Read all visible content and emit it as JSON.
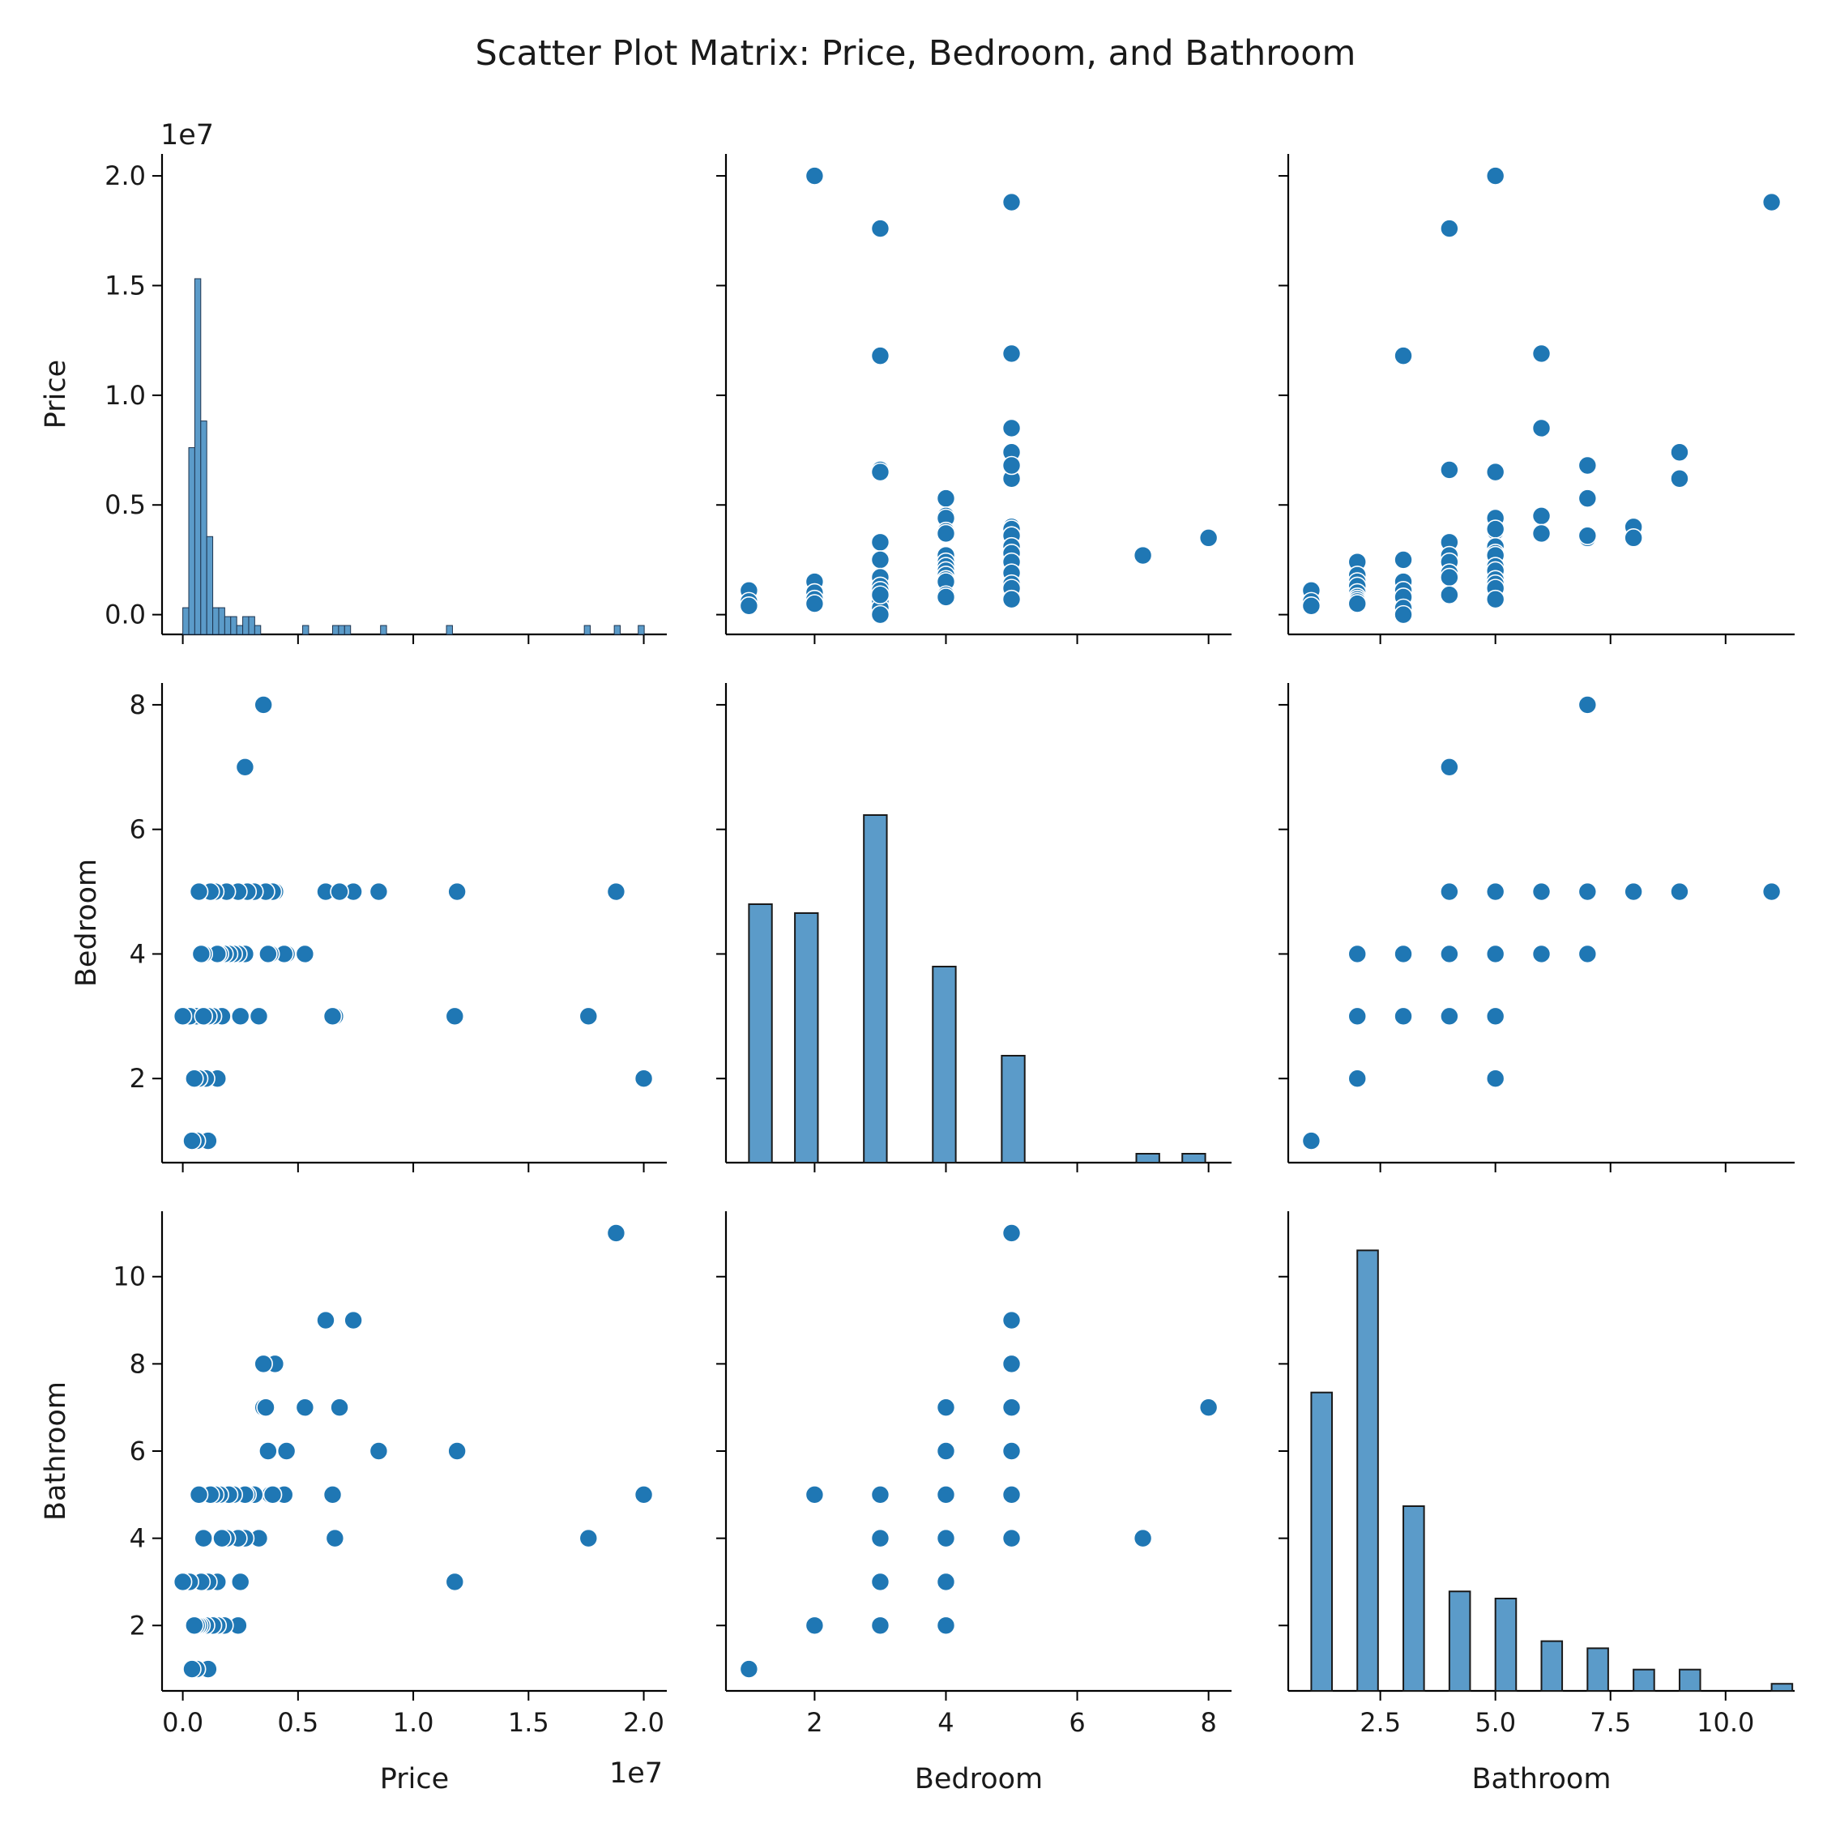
{
  "chart_data": {
    "type": "scatter",
    "title": "Scatter Plot Matrix: Price, Bedroom, and Bathroom",
    "variables": [
      "Price",
      "Bedroom",
      "Bathroom"
    ],
    "offset_label": "1e7",
    "colors": {
      "point": "#1f77b4",
      "bar": "#5b9bc9"
    },
    "ranges": {
      "Price": [
        -900000,
        21000000
      ],
      "Bedroom": [
        0.65,
        8.35
      ],
      "Bathroom": [
        0.5,
        11.5
      ]
    },
    "ticks": {
      "Price": {
        "values": [
          0,
          5000000,
          10000000,
          15000000,
          20000000
        ],
        "labels": [
          "0.0",
          "0.5",
          "1.0",
          "1.5",
          "2.0"
        ]
      },
      "Bedroom": {
        "values": [
          2,
          4,
          6,
          8
        ],
        "labels": [
          "2",
          "4",
          "6",
          "8"
        ]
      },
      "Bathroom": {
        "values": [
          2.5,
          5.0,
          7.5,
          10.0
        ],
        "labels": [
          "2.5",
          "5.0",
          "7.5",
          "10.0"
        ]
      },
      "Bathroom_y": {
        "values": [
          2,
          4,
          6,
          8,
          10
        ],
        "labels": [
          "2",
          "4",
          "6",
          "8",
          "10"
        ]
      }
    },
    "points": [
      [
        20000000,
        2,
        5
      ],
      [
        17600000,
        3,
        4
      ],
      [
        18800000,
        5,
        11
      ],
      [
        11800000,
        3,
        3
      ],
      [
        11900000,
        5,
        6
      ],
      [
        8500000,
        5,
        6
      ],
      [
        7400000,
        5,
        9
      ],
      [
        6200000,
        5,
        9
      ],
      [
        6800000,
        5,
        7
      ],
      [
        6600000,
        3,
        4
      ],
      [
        6500000,
        3,
        5
      ],
      [
        5300000,
        4,
        7
      ],
      [
        4500000,
        4,
        6
      ],
      [
        4400000,
        4,
        5
      ],
      [
        4000000,
        5,
        8
      ],
      [
        3800000,
        4,
        5
      ],
      [
        3900000,
        5,
        5
      ],
      [
        3500000,
        8,
        7
      ],
      [
        3500000,
        5,
        8
      ],
      [
        3700000,
        4,
        6
      ],
      [
        3600000,
        5,
        7
      ],
      [
        3300000,
        3,
        4
      ],
      [
        3100000,
        5,
        5
      ],
      [
        2800000,
        5,
        5
      ],
      [
        2700000,
        7,
        4
      ],
      [
        2700000,
        4,
        5
      ],
      [
        2500000,
        3,
        3
      ],
      [
        2400000,
        5,
        4
      ],
      [
        2400000,
        4,
        2
      ],
      [
        2200000,
        4,
        5
      ],
      [
        2000000,
        4,
        5
      ],
      [
        1900000,
        5,
        4
      ],
      [
        1800000,
        4,
        2
      ],
      [
        1700000,
        3,
        4
      ],
      [
        1600000,
        4,
        5
      ],
      [
        1500000,
        2,
        2
      ],
      [
        1500000,
        4,
        3
      ],
      [
        1400000,
        5,
        5
      ],
      [
        1300000,
        3,
        2
      ],
      [
        1200000,
        5,
        5
      ],
      [
        1100000,
        3,
        3
      ],
      [
        1000000,
        2,
        2
      ],
      [
        1100000,
        1,
        1
      ],
      [
        900000,
        4,
        4
      ],
      [
        800000,
        3,
        2
      ],
      [
        700000,
        2,
        2
      ],
      [
        800000,
        4,
        3
      ],
      [
        600000,
        3,
        2
      ],
      [
        600000,
        1,
        1
      ],
      [
        500000,
        2,
        2
      ],
      [
        400000,
        1,
        1
      ],
      [
        300000,
        3,
        3
      ],
      [
        0,
        3,
        3
      ],
      [
        900000,
        3,
        4
      ],
      [
        700000,
        5,
        5
      ]
    ],
    "histograms": {
      "Price": {
        "edges_start": 0,
        "bin_width": 260000,
        "counts": [
          3,
          21,
          40,
          24,
          11,
          3,
          3,
          2,
          2,
          1,
          2,
          2,
          1,
          0,
          0,
          0,
          0,
          0,
          0,
          0,
          1,
          0,
          0,
          0,
          0,
          1,
          1,
          1,
          0,
          0,
          0,
          0,
          0,
          1,
          0,
          0,
          0,
          0,
          0,
          0,
          0,
          0,
          0,
          0,
          1,
          0,
          0,
          0,
          0,
          0,
          0,
          0,
          0,
          0,
          0,
          0,
          0,
          0,
          0,
          0,
          0,
          0,
          0,
          0,
          0,
          0,
          0,
          1,
          0,
          0,
          0,
          0,
          1,
          0,
          0,
          0,
          1
        ]
      },
      "Bedroom": {
        "bins": [
          [
            1.0,
            1.35,
            29
          ],
          [
            1.7,
            2.05,
            28
          ],
          [
            2.75,
            3.1,
            39
          ],
          [
            3.8,
            4.15,
            22
          ],
          [
            4.85,
            5.2,
            12
          ],
          [
            6.9,
            7.25,
            1
          ],
          [
            7.6,
            7.95,
            1
          ]
        ],
        "ymax": 42
      },
      "Bathroom": {
        "bins": [
          [
            1.0,
            1.45,
            42
          ],
          [
            1.5,
            1.95,
            0
          ],
          [
            2.0,
            2.45,
            62
          ],
          [
            3.0,
            3.45,
            26
          ],
          [
            4.0,
            4.45,
            14
          ],
          [
            5.0,
            5.45,
            13
          ],
          [
            6.0,
            6.45,
            7
          ],
          [
            7.0,
            7.45,
            6
          ],
          [
            8.0,
            8.45,
            3
          ],
          [
            9.0,
            9.45,
            3
          ],
          [
            11.0,
            11.45,
            1
          ]
        ],
        "ymax": 65
      }
    }
  }
}
